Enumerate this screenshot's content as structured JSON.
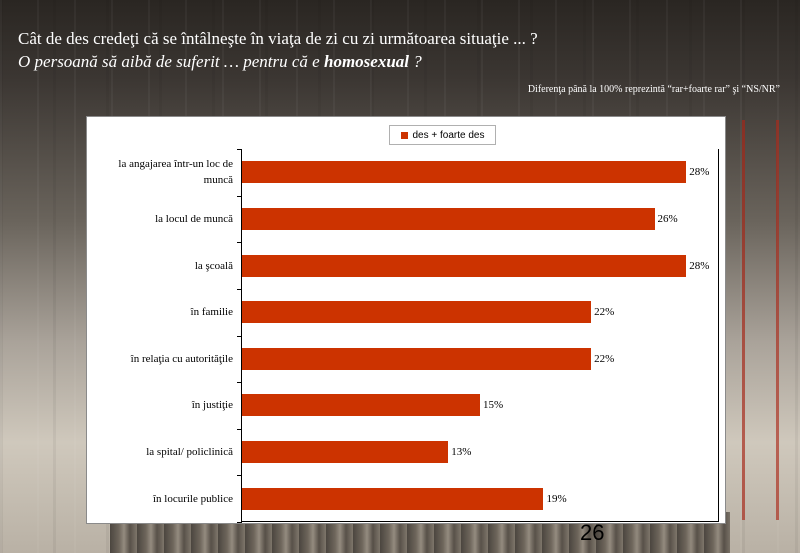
{
  "slide": {
    "title_line1": "Cât de des credeţi că se întâlneşte în viaţa de zi cu zi următoarea situaţie ... ?",
    "title_line2_prefix": "O persoană să aibă de suferit … pentru că e ",
    "title_line2_emph": "homosexual",
    "title_line2_suffix": " ?",
    "note": "Diferenţa până la 100% reprezintă  “rar+foarte rar” şi “NS/NR”",
    "page_number": "26"
  },
  "colors": {
    "bar": "#cc3300"
  },
  "chart_data": {
    "type": "bar",
    "orientation": "horizontal",
    "title": "",
    "xlabel": "",
    "ylabel": "",
    "xlim": [
      0,
      30
    ],
    "grid": false,
    "legend_position": "top-center",
    "series": [
      {
        "name": "des + foarte des",
        "values": [
          28,
          26,
          28,
          22,
          22,
          15,
          13,
          19
        ]
      }
    ],
    "categories": [
      "la angajarea într-un loc de muncă",
      "la locul de muncă",
      "la şcoală",
      "în familie",
      "în relaţia cu autorităţile",
      "în justiţie",
      "la spital/ policlinică",
      "în locurile publice"
    ],
    "value_labels": [
      "28%",
      "26%",
      "28%",
      "22%",
      "22%",
      "15%",
      "13%",
      "19%"
    ]
  }
}
